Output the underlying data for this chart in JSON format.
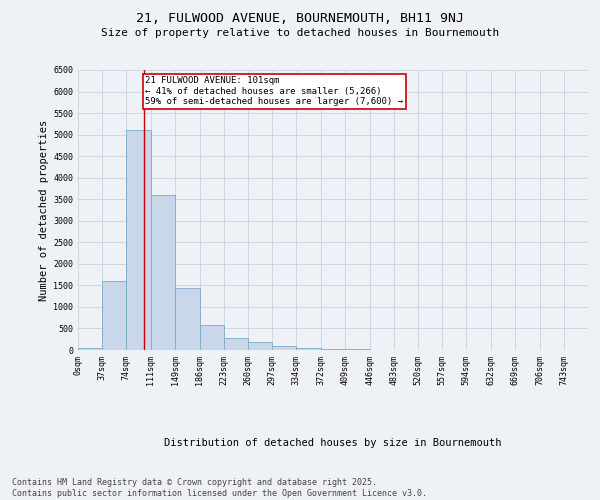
{
  "title1": "21, FULWOOD AVENUE, BOURNEMOUTH, BH11 9NJ",
  "title2": "Size of property relative to detached houses in Bournemouth",
  "xlabel": "Distribution of detached houses by size in Bournemouth",
  "ylabel": "Number of detached properties",
  "bin_labels": [
    "0sqm",
    "37sqm",
    "74sqm",
    "111sqm",
    "149sqm",
    "186sqm",
    "223sqm",
    "260sqm",
    "297sqm",
    "334sqm",
    "372sqm",
    "409sqm",
    "446sqm",
    "483sqm",
    "520sqm",
    "557sqm",
    "594sqm",
    "632sqm",
    "669sqm",
    "706sqm",
    "743sqm"
  ],
  "bin_edges": [
    0,
    37,
    74,
    111,
    149,
    186,
    223,
    260,
    297,
    334,
    372,
    409,
    446,
    483,
    520,
    557,
    594,
    632,
    669,
    706,
    743,
    780
  ],
  "bar_values": [
    55,
    1600,
    5100,
    3600,
    1450,
    570,
    290,
    185,
    95,
    45,
    28,
    12,
    6,
    3,
    2,
    1,
    1,
    0,
    0,
    0,
    0
  ],
  "bar_color": "#c8d8ea",
  "bar_edge_color": "#7aaac8",
  "grid_color": "#c5d5e5",
  "property_size": 101,
  "annotation_text": "21 FULWOOD AVENUE: 101sqm\n← 41% of detached houses are smaller (5,266)\n59% of semi-detached houses are larger (7,600) →",
  "annotation_box_color": "#ffffff",
  "annotation_border_color": "#cc0000",
  "vline_color": "#cc0000",
  "ylim": [
    0,
    6500
  ],
  "yticks": [
    0,
    500,
    1000,
    1500,
    2000,
    2500,
    3000,
    3500,
    4000,
    4500,
    5000,
    5500,
    6000,
    6500
  ],
  "footer_text": "Contains HM Land Registry data © Crown copyright and database right 2025.\nContains public sector information licensed under the Open Government Licence v3.0.",
  "bg_color": "#eef2f7",
  "title1_fontsize": 9.5,
  "title2_fontsize": 8.0,
  "tick_fontsize": 6.0,
  "ylabel_fontsize": 7.5,
  "xlabel_fontsize": 7.5,
  "annot_fontsize": 6.5,
  "footer_fontsize": 6.0
}
